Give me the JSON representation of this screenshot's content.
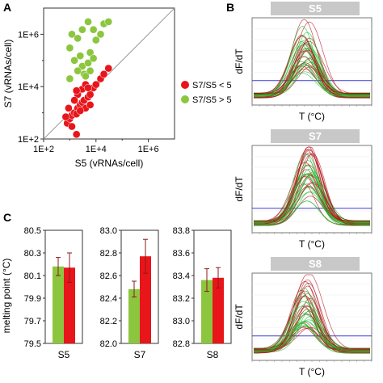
{
  "panels": {
    "A": "A",
    "B": "B",
    "C": "C"
  },
  "colors": {
    "red": "#e8151b",
    "green": "#8cc63f",
    "melt_red": "#b3121a",
    "melt_green": "#1dbf2c",
    "baseline_blue": "#3b3bd6",
    "gray_header": "#c8c8c8",
    "errorbar": "#8b1a1a"
  },
  "chart_data": [
    {
      "id": "A",
      "type": "scatter",
      "xlabel": "S5 (vRNAs/cell)",
      "ylabel": "S7 (vRNAs/cell)",
      "scale": "log10",
      "xlim": [
        100,
        10000000
      ],
      "ylim": [
        100,
        10000000
      ],
      "xtick_labels": [
        "1E+2",
        "1E+4",
        "1E+6"
      ],
      "ytick_labels": [
        "1E+2",
        "1E+4",
        "1E+6"
      ],
      "diagonal": true,
      "legend": [
        "S7/S5  <  5",
        "S7/S5  >  5"
      ],
      "legend_position": "right",
      "series": [
        {
          "name": "S7/S5  <  5",
          "color": "#e8151b",
          "points": [
            [
              800,
              400
            ],
            [
              1000,
              600
            ],
            [
              1200,
              800
            ],
            [
              1500,
              1000
            ],
            [
              2000,
              1500
            ],
            [
              2500,
              2000
            ],
            [
              3000,
              2500
            ],
            [
              700,
              700
            ],
            [
              1800,
              900
            ],
            [
              3500,
              3000
            ],
            [
              4000,
              1500
            ],
            [
              5000,
              4000
            ],
            [
              6000,
              5000
            ],
            [
              8000,
              9000
            ],
            [
              10000,
              12000
            ],
            [
              15000,
              20000
            ],
            [
              20000,
              30000
            ],
            [
              30000,
              50000
            ],
            [
              2000,
              5000
            ],
            [
              1500,
              3000
            ],
            [
              3000,
              8000
            ],
            [
              4000,
              12000
            ],
            [
              5000,
              9000
            ],
            [
              1800,
              7000
            ],
            [
              1200,
              300
            ],
            [
              2500,
              1200
            ],
            [
              900,
              1500
            ],
            [
              6000,
              2000
            ],
            [
              1800,
              150
            ]
          ]
        },
        {
          "name": "S7/S5  >  5",
          "color": "#8cc63f",
          "points": [
            [
              1000,
              300000
            ],
            [
              1200,
              1000000
            ],
            [
              2000,
              700000
            ],
            [
              3000,
              1500000
            ],
            [
              5000,
              3000000
            ],
            [
              8000,
              1500000
            ],
            [
              10000,
              600000
            ],
            [
              15000,
              1000000
            ],
            [
              20000,
              2500000
            ],
            [
              30000,
              3000000
            ],
            [
              1500,
              100000
            ],
            [
              2500,
              150000
            ],
            [
              3000,
              60000
            ],
            [
              5000,
              80000
            ],
            [
              6000,
              200000
            ],
            [
              8000,
              120000
            ],
            [
              3500,
              30000
            ],
            [
              4000,
              25000
            ],
            [
              2000,
              40000
            ],
            [
              6000,
              40000
            ],
            [
              1000,
              20000
            ]
          ]
        }
      ]
    },
    {
      "id": "B",
      "type": "line",
      "xlabel": "T (°C)",
      "ylabel": "dF/dT",
      "panels": [
        {
          "title": "S5"
        },
        {
          "title": "S7"
        },
        {
          "title": "S8"
        }
      ]
    },
    {
      "id": "C",
      "type": "bar",
      "ylabel": "melting point (°C)",
      "groups": [
        {
          "name": "S5",
          "ylim": [
            79.5,
            80.5
          ],
          "ticks": [
            "80.5",
            "80.3",
            "80.1",
            "79.9",
            "79.7",
            "79.5"
          ],
          "green": 80.18,
          "red": 80.17,
          "green_err": 0.08,
          "red_err": 0.13
        },
        {
          "name": "S7",
          "ylim": [
            82.0,
            83.0
          ],
          "ticks": [
            "83.0",
            "82.8",
            "82.6",
            "82.4",
            "82.2",
            "82.0"
          ],
          "green": 82.48,
          "red": 82.77,
          "green_err": 0.07,
          "red_err": 0.15
        },
        {
          "name": "S8",
          "ylim": [
            82.8,
            83.8
          ],
          "ticks": [
            "83.8",
            "83.6",
            "83.4",
            "83.2",
            "83.0",
            "82.8"
          ],
          "green": 83.36,
          "red": 83.38,
          "green_err": 0.1,
          "red_err": 0.09
        }
      ],
      "series": [
        {
          "name": "",
          "color": "#8cc63f"
        },
        {
          "name": "",
          "color": "#e8151b"
        }
      ]
    }
  ]
}
